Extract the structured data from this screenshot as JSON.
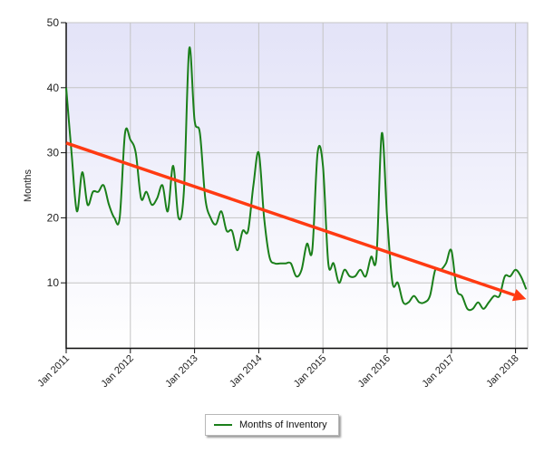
{
  "chart_data": {
    "type": "line",
    "ylabel": "Months",
    "ylim": [
      0,
      50
    ],
    "yticks": [
      "10",
      "20",
      "30",
      "40",
      "50"
    ],
    "xlim": [
      "2011-01",
      "2018-03"
    ],
    "xticks": [
      {
        "date": "2011-01",
        "label": "Jan 2011"
      },
      {
        "date": "2012-01",
        "label": "Jan 2012"
      },
      {
        "date": "2013-01",
        "label": "Jan 2013"
      },
      {
        "date": "2014-01",
        "label": "Jan 2014"
      },
      {
        "date": "2015-01",
        "label": "Jan 2015"
      },
      {
        "date": "2016-01",
        "label": "Jan 2016"
      },
      {
        "date": "2017-01",
        "label": "Jan 2017"
      },
      {
        "date": "2018-01",
        "label": "Jan 2018"
      }
    ],
    "grid": true,
    "legend_position": "bottom-center",
    "series": [
      {
        "name": "Months of Inventory",
        "color": "#1a7f1a",
        "x": [
          "2011-01",
          "2011-02",
          "2011-03",
          "2011-04",
          "2011-05",
          "2011-06",
          "2011-07",
          "2011-08",
          "2011-09",
          "2011-10",
          "2011-11",
          "2011-12",
          "2012-01",
          "2012-02",
          "2012-03",
          "2012-04",
          "2012-05",
          "2012-06",
          "2012-07",
          "2012-08",
          "2012-09",
          "2012-10",
          "2012-11",
          "2012-12",
          "2013-01",
          "2013-02",
          "2013-03",
          "2013-04",
          "2013-05",
          "2013-06",
          "2013-07",
          "2013-08",
          "2013-09",
          "2013-10",
          "2013-11",
          "2013-12",
          "2014-01",
          "2014-02",
          "2014-03",
          "2014-04",
          "2014-05",
          "2014-06",
          "2014-07",
          "2014-08",
          "2014-09",
          "2014-10",
          "2014-11",
          "2014-12",
          "2015-01",
          "2015-02",
          "2015-03",
          "2015-04",
          "2015-05",
          "2015-06",
          "2015-07",
          "2015-08",
          "2015-09",
          "2015-10",
          "2015-11",
          "2015-12",
          "2016-01",
          "2016-02",
          "2016-03",
          "2016-04",
          "2016-05",
          "2016-06",
          "2016-07",
          "2016-08",
          "2016-09",
          "2016-10",
          "2016-11",
          "2016-12",
          "2017-01",
          "2017-02",
          "2017-03",
          "2017-04",
          "2017-05",
          "2017-06",
          "2017-07",
          "2017-08",
          "2017-09",
          "2017-10",
          "2017-11",
          "2017-12",
          "2018-01",
          "2018-02",
          "2018-03"
        ],
        "values": [
          40,
          30,
          21,
          27,
          22,
          24,
          24,
          25,
          22,
          20,
          20,
          33,
          32,
          30,
          23,
          24,
          22,
          23,
          25,
          21,
          28,
          20,
          24,
          46,
          35,
          33,
          23,
          20,
          19,
          21,
          18,
          18,
          15,
          18,
          18,
          25,
          30,
          20,
          14,
          13,
          13,
          13,
          13,
          11,
          12,
          16,
          15,
          30,
          28,
          13,
          13,
          10,
          12,
          11,
          11,
          12,
          11,
          14,
          14,
          33,
          20,
          10,
          10,
          7,
          7,
          8,
          7,
          7,
          8,
          12,
          12,
          13,
          15,
          9,
          8,
          6,
          6,
          7,
          6,
          7,
          8,
          8,
          11,
          11,
          12,
          11,
          9
        ]
      }
    ],
    "annotations": [
      {
        "type": "trend-arrow",
        "color": "#ff3a12",
        "start": {
          "x": "2011-01",
          "y": 31.5
        },
        "end": {
          "x": "2018-03",
          "y": 7.5
        }
      }
    ]
  }
}
